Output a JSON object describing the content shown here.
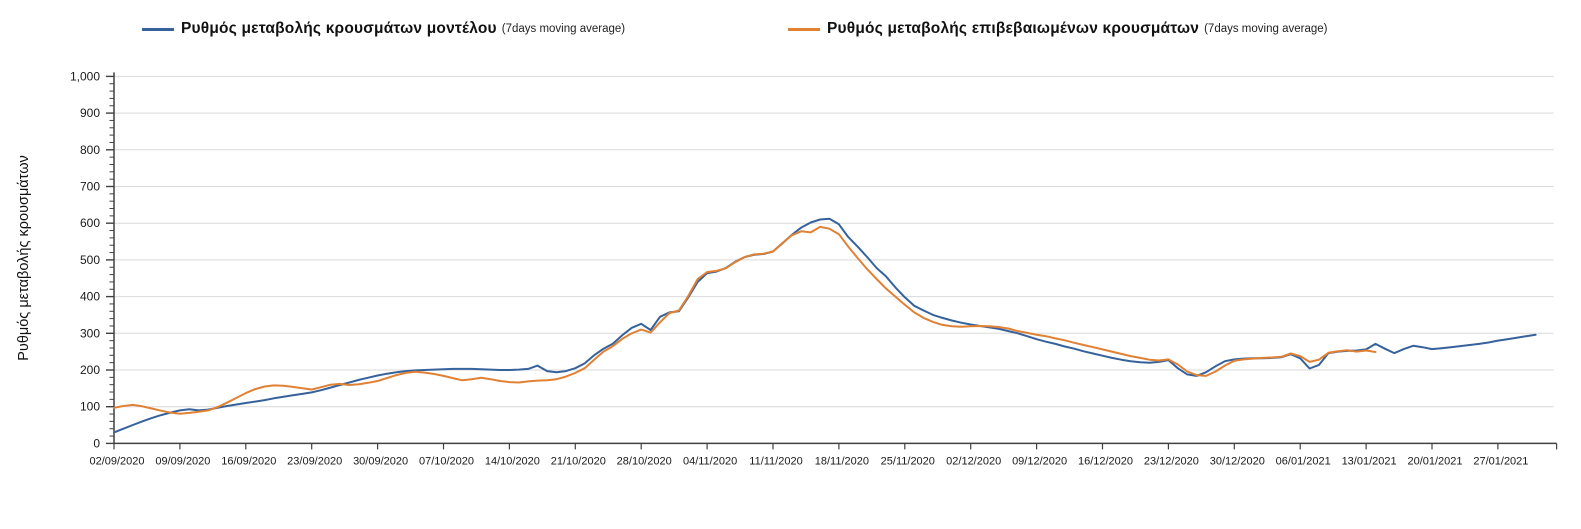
{
  "chart_data": {
    "type": "line",
    "title": "",
    "ylabel": "Ρυθμός μεταβολής κρουσμάτων",
    "ylim": [
      0,
      1000
    ],
    "y_tick_step": 100,
    "y_minor_tick_step": 20,
    "grid": "horizontal",
    "gridline_color": "#d9d9d9",
    "axis_color": "#404040",
    "legend_position": "top",
    "x_tick_labels": [
      "02/09/2020",
      "09/09/2020",
      "16/09/2020",
      "23/09/2020",
      "30/09/2020",
      "07/10/2020",
      "14/10/2020",
      "21/10/2020",
      "28/10/2020",
      "04/11/2020",
      "11/11/2020",
      "18/11/2020",
      "25/11/2020",
      "02/12/2020",
      "09/12/2020",
      "16/12/2020",
      "23/12/2020",
      "30/12/2020",
      "06/01/2021",
      "13/01/2021",
      "20/01/2021",
      "27/01/2021"
    ],
    "days_per_tick": 7,
    "series": [
      {
        "name": "Ρυθμός μεταβολής κρουσμάτων μοντέλου",
        "suffix": "(7days moving average)",
        "color": "#36629C",
        "start_day": 0,
        "values": [
          30,
          40,
          50,
          60,
          69,
          77,
          84,
          90,
          93,
          90,
          92,
          97,
          102,
          106,
          110,
          114,
          118,
          123,
          127,
          131,
          135,
          139,
          145,
          152,
          159,
          166,
          173,
          179,
          185,
          190,
          194,
          197,
          199,
          200,
          201,
          202,
          203,
          203,
          203,
          202,
          201,
          200,
          200,
          201,
          203,
          212,
          197,
          194,
          197,
          205,
          218,
          240,
          258,
          272,
          295,
          315,
          326,
          309,
          345,
          357,
          360,
          398,
          440,
          464,
          468,
          478,
          495,
          508,
          514,
          516,
          523,
          545,
          568,
          588,
          602,
          610,
          612,
          597,
          562,
          536,
          508,
          478,
          455,
          425,
          398,
          375,
          362,
          350,
          342,
          335,
          329,
          324,
          320,
          316,
          312,
          306,
          300,
          292,
          284,
          277,
          271,
          264,
          258,
          251,
          245,
          239,
          233,
          228,
          224,
          221,
          220,
          222,
          227,
          205,
          188,
          184,
          194,
          210,
          224,
          229,
          231,
          232,
          232,
          233,
          235,
          243,
          232,
          204,
          214,
          246,
          250,
          252,
          253,
          256,
          271,
          258,
          246,
          257,
          266,
          262,
          257,
          259,
          262,
          265,
          268,
          271,
          275,
          280,
          284,
          288,
          292,
          296
        ]
      },
      {
        "name": "Ρυθμός μεταβολής επιβεβαιωμένων κρουσμάτων",
        "suffix": "(7days moving average)",
        "color": "#E08134",
        "start_day": 0,
        "values": [
          97,
          102,
          105,
          101,
          95,
          89,
          84,
          81,
          83,
          86,
          90,
          99,
          111,
          124,
          137,
          148,
          155,
          158,
          157,
          154,
          150,
          147,
          153,
          160,
          162,
          159,
          161,
          165,
          170,
          178,
          186,
          192,
          195,
          193,
          189,
          184,
          178,
          172,
          175,
          179,
          175,
          170,
          167,
          166,
          169,
          171,
          172,
          175,
          182,
          192,
          205,
          228,
          250,
          265,
          285,
          300,
          310,
          302,
          330,
          355,
          362,
          402,
          448,
          467,
          470,
          477,
          494,
          508,
          515,
          517,
          523,
          546,
          567,
          578,
          575,
          590,
          585,
          570,
          536,
          505,
          475,
          448,
          422,
          400,
          378,
          357,
          342,
          331,
          323,
          319,
          318,
          319,
          320,
          319,
          317,
          313,
          306,
          301,
          296,
          292,
          286,
          281,
          274,
          268,
          262,
          256,
          250,
          244,
          238,
          233,
          228,
          226,
          229,
          215,
          196,
          186,
          184,
          196,
          212,
          225,
          229,
          231,
          233,
          234,
          236,
          245,
          238,
          222,
          228,
          247,
          251,
          254,
          250,
          253,
          249
        ]
      }
    ]
  }
}
